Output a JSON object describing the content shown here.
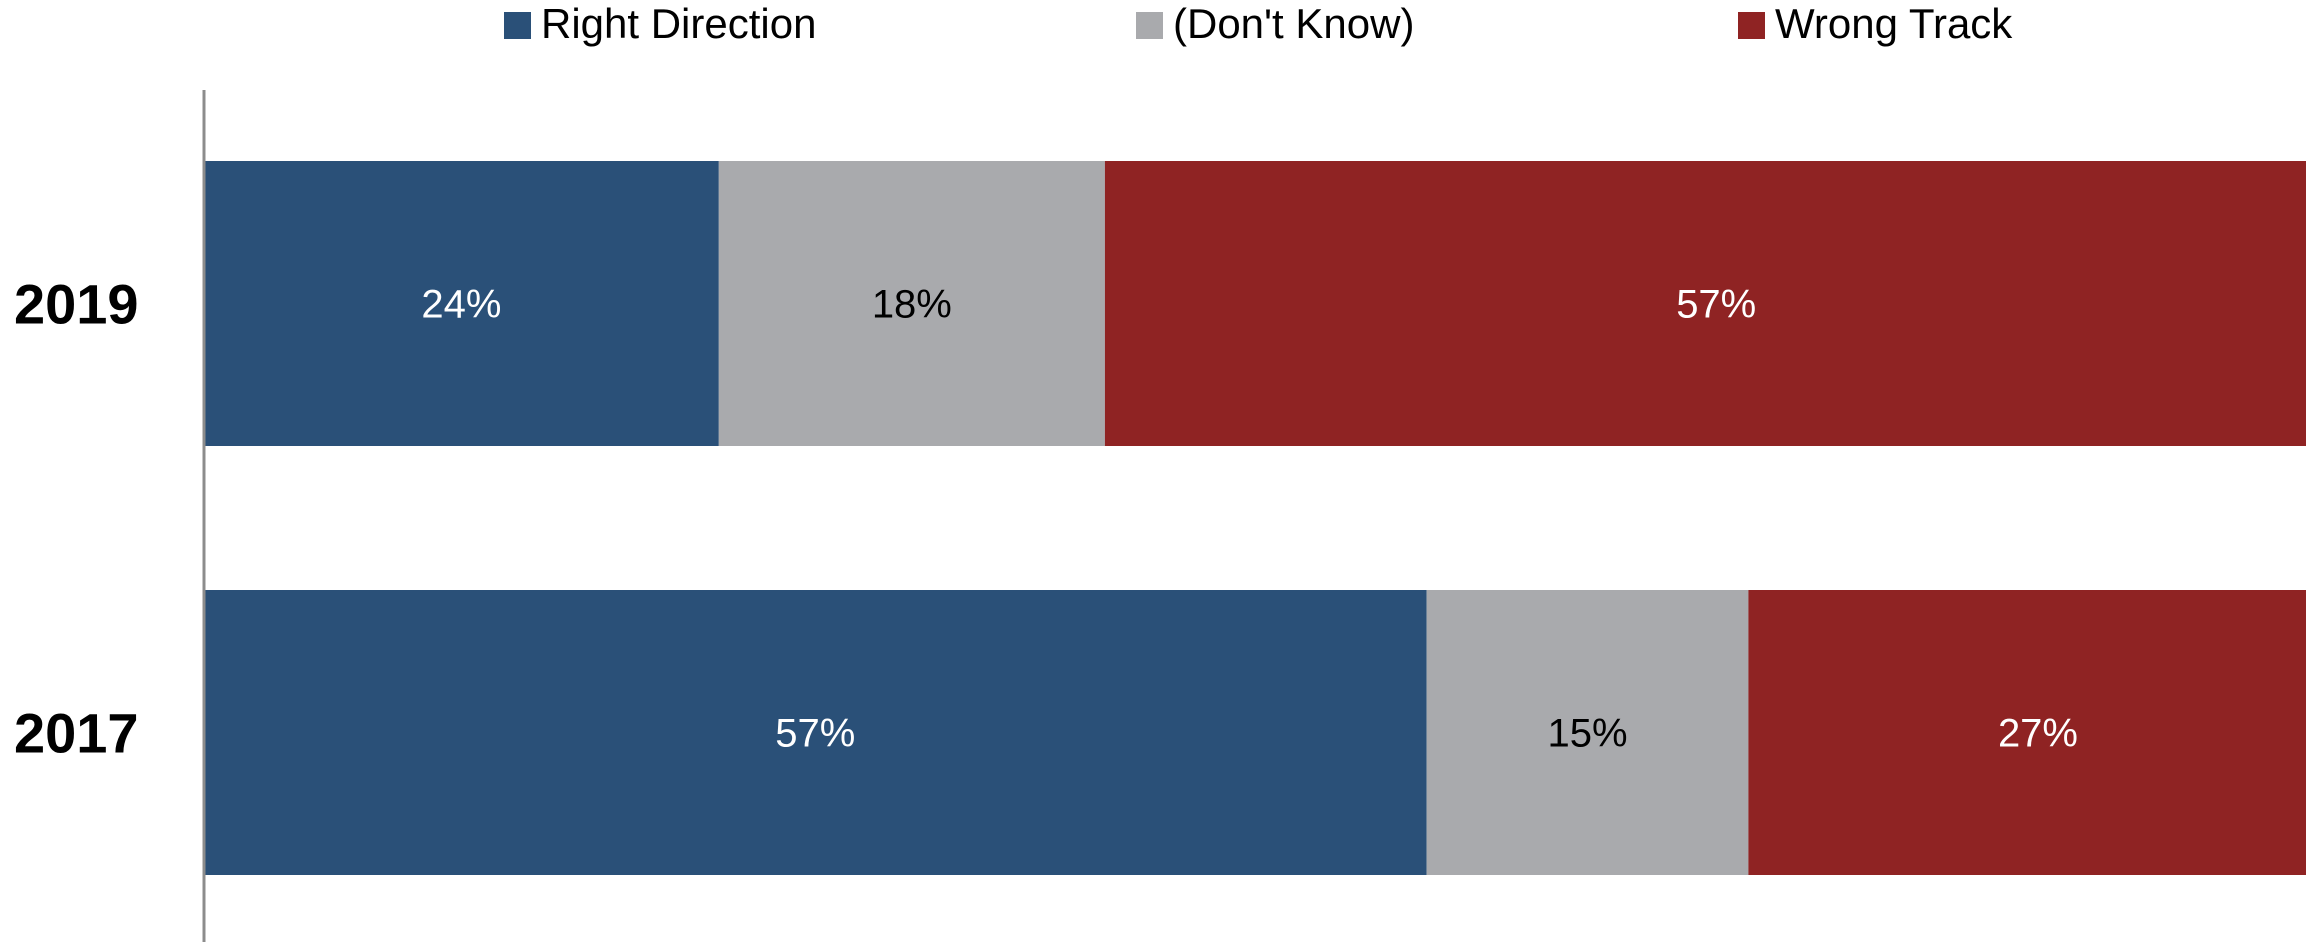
{
  "chart_data": {
    "type": "bar",
    "orientation": "horizontal",
    "stacked": true,
    "categories": [
      "2019",
      "2017"
    ],
    "series": [
      {
        "name": "Right Direction",
        "values": [
          24,
          57
        ],
        "labels": [
          "24%",
          "57%"
        ],
        "color": "#2a5078",
        "label_color": "#ffffff"
      },
      {
        "name": "(Don't Know)",
        "values": [
          18,
          15
        ],
        "labels": [
          "18%",
          "15%"
        ],
        "color": "#a9aaad",
        "label_color": "#000000"
      },
      {
        "name": "Wrong Track",
        "values": [
          57,
          27
        ],
        "labels": [
          "57%",
          "27%"
        ],
        "color": "#8f2323",
        "label_color": "#ffffff"
      }
    ],
    "xlim": [
      0,
      100
    ],
    "legend_position": "top",
    "grid": false
  }
}
